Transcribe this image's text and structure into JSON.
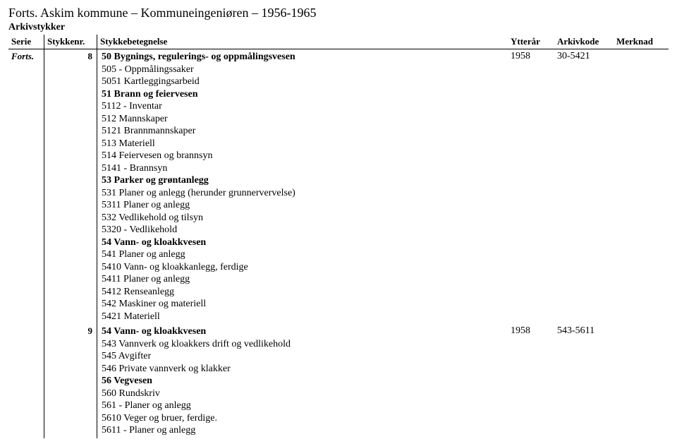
{
  "title": "Forts. Askim kommune – Kommuneingeniøren – 1956-1965",
  "subtitle": "Arkivstykker",
  "columns": {
    "serie": "Serie",
    "stykknr": "Stykkenr.",
    "betegn": "Stykkebetegnelse",
    "ytterar": "Ytterår",
    "arkivkode": "Arkivkode",
    "merknad": "Merknad"
  },
  "rows": [
    {
      "serie": "Forts.",
      "stykknr": "8",
      "ytterar": "1958",
      "arkivkode": "30-5421",
      "merknad": "",
      "lines": [
        {
          "t": "50 Bygnings, regulerings- og oppmålingsvesen",
          "b": true
        },
        {
          "t": "505 - Oppmålingssaker",
          "b": false
        },
        {
          "t": "5051 Kartleggingsarbeid",
          "b": false
        },
        {
          "t": "51 Brann og feiervesen",
          "b": true
        },
        {
          "t": "5112 - Inventar",
          "b": false
        },
        {
          "t": "512 Mannskaper",
          "b": false
        },
        {
          "t": "5121 Brannmannskaper",
          "b": false
        },
        {
          "t": "513 Materiell",
          "b": false
        },
        {
          "t": "514 Feiervesen og brannsyn",
          "b": false
        },
        {
          "t": "5141 - Brannsyn",
          "b": false
        },
        {
          "t": "53 Parker og grøntanlegg",
          "b": true
        },
        {
          "t": "531 Planer og anlegg (herunder grunnervervelse)",
          "b": false
        },
        {
          "t": "5311 Planer og anlegg",
          "b": false
        },
        {
          "t": "532 Vedlikehold og tilsyn",
          "b": false
        },
        {
          "t": "5320 - Vedlikehold",
          "b": false
        },
        {
          "t": "54 Vann- og kloakkvesen",
          "b": true
        },
        {
          "t": "541 Planer og anlegg",
          "b": false
        },
        {
          "t": "5410 Vann- og kloakkanlegg, ferdige",
          "b": false
        },
        {
          "t": "5411 Planer og anlegg",
          "b": false
        },
        {
          "t": "5412 Renseanlegg",
          "b": false
        },
        {
          "t": "542 Maskiner og materiell",
          "b": false
        },
        {
          "t": "5421 Materiell",
          "b": false
        }
      ]
    },
    {
      "serie": "",
      "stykknr": "9",
      "ytterar": "1958",
      "arkivkode": "543-5611",
      "merknad": "",
      "lines": [
        {
          "t": "54 Vann- og kloakkvesen",
          "b": true
        },
        {
          "t": "543 Vannverk og kloakkers drift og vedlikehold",
          "b": false
        },
        {
          "t": "545 Avgifter",
          "b": false
        },
        {
          "t": "546 Private vannverk og klakker",
          "b": false
        },
        {
          "t": "56 Vegvesen",
          "b": true
        },
        {
          "t": "560 Rundskriv",
          "b": false
        },
        {
          "t": "561 - Planer og anlegg",
          "b": false
        },
        {
          "t": "5610 Veger og bruer, ferdige.",
          "b": false
        },
        {
          "t": "5611 - Planer og anlegg",
          "b": false
        }
      ]
    }
  ]
}
